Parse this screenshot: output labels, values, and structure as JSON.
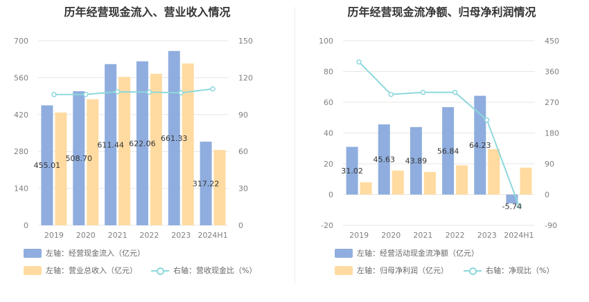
{
  "colors": {
    "bar_left": "#8fadde",
    "bar_right": "#ffdba1",
    "line": "#8dd8dc",
    "grid": "#e6e6e6"
  },
  "chart_data": [
    {
      "type": "bar",
      "title": "历年经营现金流入、营业收入情况",
      "categories": [
        "2019",
        "2020",
        "2021",
        "2022",
        "2023",
        "2024H1"
      ],
      "y_left": {
        "ylim": [
          0,
          700
        ],
        "ticks": [
          "0",
          "140",
          "280",
          "420",
          "560",
          "700"
        ]
      },
      "y_right": {
        "ylim": [
          0,
          150
        ],
        "ticks": [
          "0",
          "30",
          "60",
          "90",
          "120",
          "150"
        ]
      },
      "series": [
        {
          "name": "左轴：经营现金流入（亿元）",
          "type": "bar",
          "axis": "left",
          "values": [
            455.01,
            508.7,
            611.44,
            622.06,
            661.33,
            317.22
          ],
          "labels": [
            "455.01",
            "508.70",
            "611.44",
            "622.06",
            "661.33",
            "317.22"
          ]
        },
        {
          "name": "左轴：营业总收入（亿元）",
          "type": "bar",
          "axis": "left",
          "values": [
            428,
            478,
            563,
            575,
            614,
            286
          ]
        },
        {
          "name": "右轴：营收现金比（%）",
          "type": "line",
          "axis": "right",
          "values": [
            106.3,
            106.4,
            108.6,
            108.2,
            107.7,
            110.9
          ]
        }
      ]
    },
    {
      "type": "bar",
      "title": "历年经营现金流净额、归母净利润情况",
      "categories": [
        "2019",
        "2020",
        "2021",
        "2022",
        "2023",
        "2024H1"
      ],
      "y_left": {
        "ylim": [
          -20,
          100
        ],
        "ticks": [
          "-20",
          "0",
          "20",
          "40",
          "60",
          "80",
          "100"
        ]
      },
      "y_right": {
        "ylim": [
          -90,
          450
        ],
        "ticks": [
          "-90",
          "0",
          "90",
          "180",
          "270",
          "360",
          "450"
        ]
      },
      "series": [
        {
          "name": "左轴：经营活动现金流净额（亿元）",
          "type": "bar",
          "axis": "left",
          "values": [
            31.02,
            45.63,
            43.89,
            56.84,
            64.23,
            -5.74
          ],
          "labels": [
            "31.02",
            "45.63",
            "43.89",
            "56.84",
            "64.23",
            "-5.74"
          ]
        },
        {
          "name": "左轴：归母净利润（亿元）",
          "type": "bar",
          "axis": "left",
          "values": [
            8.0,
            15.6,
            14.7,
            19.0,
            29.5,
            17.5
          ]
        },
        {
          "name": "右轴：净现比（%）",
          "type": "line",
          "axis": "right",
          "values": [
            388,
            293,
            299,
            299,
            218,
            -33
          ]
        }
      ]
    }
  ]
}
